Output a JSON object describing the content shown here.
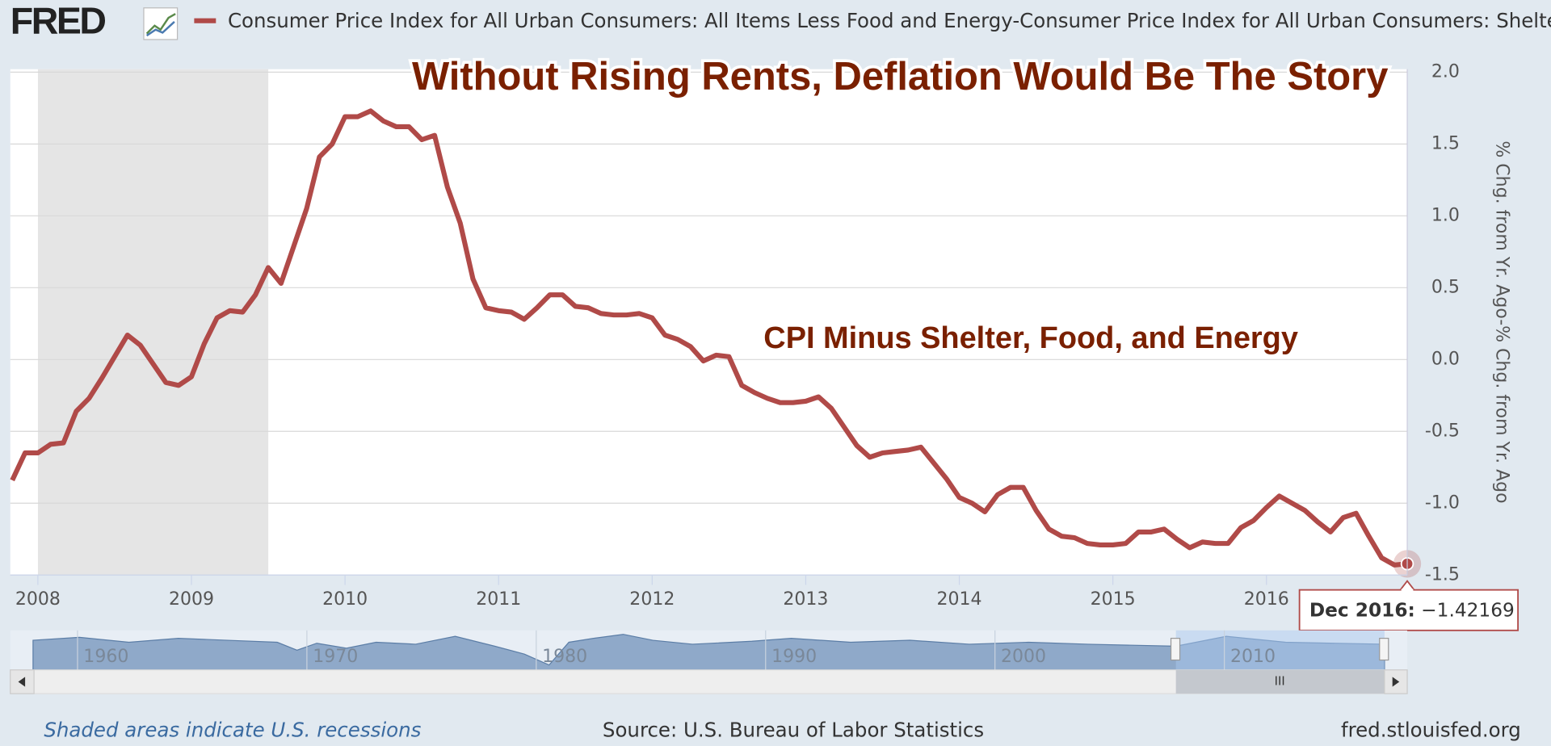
{
  "logo": "FRED",
  "footer": {
    "note": "Shaded areas indicate U.S. recessions",
    "source": "Source: U.S. Bureau of Labor Statistics",
    "site": "fred.stlouisfed.org"
  },
  "navigator": {
    "labels": [
      "1960",
      "1970",
      "1980",
      "1990",
      "2000",
      "2010"
    ]
  },
  "chart_data": {
    "type": "line",
    "title": "Without Rising Rents, Deflation Would Be The Story",
    "annotation": "CPI Minus Shelter, Food, and Energy",
    "y_label": "% Chg. from Yr. Ago-% Chg. from Yr. Ago",
    "shaded_regions": [
      [
        "2007-12",
        "2009-06"
      ]
    ],
    "x": [
      "2007-11",
      "2007-12",
      "2008-01",
      "2008-02",
      "2008-03",
      "2008-04",
      "2008-05",
      "2008-06",
      "2008-07",
      "2008-08",
      "2008-09",
      "2008-10",
      "2008-11",
      "2008-12",
      "2009-01",
      "2009-02",
      "2009-03",
      "2009-04",
      "2009-05",
      "2009-06",
      "2009-07",
      "2009-08",
      "2009-09",
      "2009-10",
      "2009-11",
      "2009-12",
      "2010-01",
      "2010-02",
      "2010-03",
      "2010-04",
      "2010-05",
      "2010-06",
      "2010-07",
      "2010-08",
      "2010-09",
      "2010-10",
      "2010-11",
      "2010-12",
      "2011-01",
      "2011-02",
      "2011-03",
      "2011-04",
      "2011-05",
      "2011-06",
      "2011-07",
      "2011-08",
      "2011-09",
      "2011-10",
      "2011-11",
      "2011-12",
      "2012-01",
      "2012-02",
      "2012-03",
      "2012-04",
      "2012-05",
      "2012-06",
      "2012-07",
      "2012-08",
      "2012-09",
      "2012-10",
      "2012-11",
      "2012-12",
      "2013-01",
      "2013-02",
      "2013-03",
      "2013-04",
      "2013-05",
      "2013-06",
      "2013-07",
      "2013-08",
      "2013-09",
      "2013-10",
      "2013-11",
      "2013-12",
      "2014-01",
      "2014-02",
      "2014-03",
      "2014-04",
      "2014-05",
      "2014-06",
      "2014-07",
      "2014-08",
      "2014-09",
      "2014-10",
      "2014-11",
      "2014-12",
      "2015-01",
      "2015-02",
      "2015-03",
      "2015-04",
      "2015-05",
      "2015-06",
      "2015-07",
      "2015-08",
      "2015-09",
      "2015-10",
      "2015-11",
      "2015-12",
      "2016-01",
      "2016-02",
      "2016-03",
      "2016-04",
      "2016-05",
      "2016-06",
      "2016-07",
      "2016-08",
      "2016-09",
      "2016-10",
      "2016-11",
      "2016-12"
    ],
    "series": [
      {
        "name": "Consumer Price Index for All Urban Consumers: All Items Less Food and Energy-Consumer Price Index for All Urban Consumers: Shelter",
        "color": "#b04a48",
        "values": [
          -0.84,
          -0.65,
          -0.65,
          -0.59,
          -0.58,
          -0.36,
          -0.27,
          -0.13,
          0.02,
          0.17,
          0.1,
          -0.03,
          -0.16,
          -0.18,
          -0.12,
          0.11,
          0.29,
          0.34,
          0.33,
          0.45,
          0.64,
          0.53,
          0.79,
          1.05,
          1.41,
          1.5,
          1.69,
          1.69,
          1.73,
          1.66,
          1.62,
          1.62,
          1.53,
          1.56,
          1.2,
          0.95,
          0.56,
          0.36,
          0.34,
          0.33,
          0.28,
          0.36,
          0.45,
          0.45,
          0.37,
          0.36,
          0.32,
          0.31,
          0.31,
          0.32,
          0.29,
          0.17,
          0.14,
          0.09,
          -0.01,
          0.03,
          0.02,
          -0.18,
          -0.23,
          -0.27,
          -0.3,
          -0.3,
          -0.29,
          -0.26,
          -0.34,
          -0.47,
          -0.6,
          -0.68,
          -0.65,
          -0.64,
          -0.63,
          -0.61,
          -0.72,
          -0.83,
          -0.96,
          -1.0,
          -1.06,
          -0.94,
          -0.89,
          -0.89,
          -1.05,
          -1.18,
          -1.23,
          -1.24,
          -1.28,
          -1.29,
          -1.29,
          -1.28,
          -1.2,
          -1.2,
          -1.18,
          -1.25,
          -1.31,
          -1.27,
          -1.28,
          -1.28,
          -1.17,
          -1.12,
          -1.03,
          -0.95,
          -1.0,
          -1.05,
          -1.13,
          -1.2,
          -1.1,
          -1.07,
          -1.23,
          -1.38,
          -1.43,
          -1.42169
        ]
      }
    ],
    "tooltip": {
      "date_label": "Dec 2016",
      "value_label": "−1.42169"
    },
    "xlim": [
      "2007-11",
      "2016-12"
    ],
    "xticks": [
      {
        "value": "2008-01",
        "label": "2008"
      },
      {
        "value": "2009-01",
        "label": "2009"
      },
      {
        "value": "2010-01",
        "label": "2010"
      },
      {
        "value": "2011-01",
        "label": "2011"
      },
      {
        "value": "2012-01",
        "label": "2012"
      },
      {
        "value": "2013-01",
        "label": "2013"
      },
      {
        "value": "2014-01",
        "label": "2014"
      },
      {
        "value": "2015-01",
        "label": "2015"
      },
      {
        "value": "2016-01",
        "label": "2016"
      }
    ],
    "ylim": [
      -1.5,
      2.0
    ],
    "yticks": [
      {
        "value": 2,
        "label": "2.0"
      },
      1.5,
      {
        "value": 1,
        "label": "1.0"
      },
      0.5,
      {
        "value": 0,
        "label": "0.0"
      },
      -0.5,
      {
        "value": -1,
        "label": "-1.0"
      },
      -1.5
    ],
    "grid": true
  }
}
